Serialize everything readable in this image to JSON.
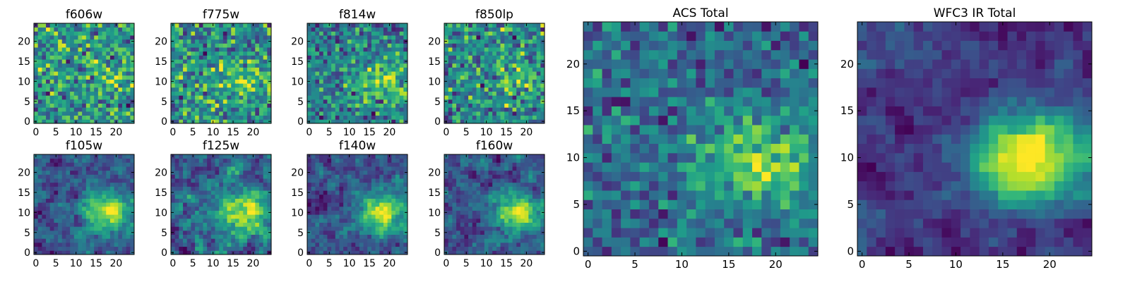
{
  "chart_data": [
    {
      "type": "heatmap",
      "title": "f606w",
      "seed": 11,
      "blob": 0.25,
      "noise": 1.0,
      "smooth": 0,
      "xlim": [
        0,
        25
      ],
      "ylim": [
        0,
        25
      ],
      "xticks": [
        "0",
        "5",
        "10",
        "15",
        "20"
      ],
      "yticks": [
        "0",
        "5",
        "10",
        "15",
        "20"
      ]
    },
    {
      "type": "heatmap",
      "title": "f775w",
      "seed": 23,
      "blob": 0.45,
      "noise": 1.0,
      "smooth": 0,
      "xlim": [
        0,
        25
      ],
      "ylim": [
        0,
        25
      ],
      "xticks": [
        "0",
        "5",
        "10",
        "15",
        "20"
      ],
      "yticks": [
        "0",
        "5",
        "10",
        "15",
        "20"
      ]
    },
    {
      "type": "heatmap",
      "title": "f814w",
      "seed": 37,
      "blob": 0.7,
      "noise": 0.9,
      "smooth": 0,
      "xlim": [
        0,
        25
      ],
      "ylim": [
        0,
        25
      ],
      "xticks": [
        "0",
        "5",
        "10",
        "15",
        "20"
      ],
      "yticks": [
        "0",
        "5",
        "10",
        "15",
        "20"
      ]
    },
    {
      "type": "heatmap",
      "title": "f850lp",
      "seed": 51,
      "blob": 0.3,
      "noise": 1.0,
      "smooth": 0,
      "xlim": [
        0,
        25
      ],
      "ylim": [
        0,
        25
      ],
      "xticks": [
        "0",
        "5",
        "10",
        "15",
        "20"
      ],
      "yticks": [
        "0",
        "5",
        "10",
        "15",
        "20"
      ]
    },
    {
      "type": "heatmap",
      "title": "f105w",
      "seed": 67,
      "blob": 0.9,
      "noise": 0.8,
      "smooth": 1,
      "xlim": [
        0,
        25
      ],
      "ylim": [
        0,
        25
      ],
      "xticks": [
        "0",
        "5",
        "10",
        "15",
        "20"
      ],
      "yticks": [
        "0",
        "5",
        "10",
        "15",
        "20"
      ]
    },
    {
      "type": "heatmap",
      "title": "f125w",
      "seed": 79,
      "blob": 0.8,
      "noise": 0.9,
      "smooth": 1,
      "xlim": [
        0,
        25
      ],
      "ylim": [
        0,
        25
      ],
      "xticks": [
        "0",
        "5",
        "10",
        "15",
        "20"
      ],
      "yticks": [
        "0",
        "5",
        "10",
        "15",
        "20"
      ]
    },
    {
      "type": "heatmap",
      "title": "f140w",
      "seed": 83,
      "blob": 1.0,
      "noise": 0.8,
      "smooth": 1,
      "xlim": [
        0,
        25
      ],
      "ylim": [
        0,
        25
      ],
      "xticks": [
        "0",
        "5",
        "10",
        "15",
        "20"
      ],
      "yticks": [
        "0",
        "5",
        "10",
        "15",
        "20"
      ]
    },
    {
      "type": "heatmap",
      "title": "f160w",
      "seed": 97,
      "blob": 0.9,
      "noise": 0.85,
      "smooth": 1,
      "xlim": [
        0,
        25
      ],
      "ylim": [
        0,
        25
      ],
      "xticks": [
        "0",
        "5",
        "10",
        "15",
        "20"
      ],
      "yticks": [
        "0",
        "5",
        "10",
        "15",
        "20"
      ]
    },
    {
      "type": "heatmap",
      "title": "ACS Total",
      "seed": 131,
      "blob": 0.9,
      "noise": 0.75,
      "smooth": 0,
      "xlim": [
        0,
        25
      ],
      "ylim": [
        0,
        25
      ],
      "xticks": [
        "0",
        "5",
        "10",
        "15",
        "20"
      ],
      "yticks": [
        "0",
        "5",
        "10",
        "15",
        "20"
      ]
    },
    {
      "type": "heatmap",
      "title": "WFC3 IR Total",
      "seed": 157,
      "blob": 1.3,
      "noise": 0.6,
      "smooth": 1,
      "xlim": [
        0,
        25
      ],
      "ylim": [
        0,
        25
      ],
      "xticks": [
        "0",
        "5",
        "10",
        "15",
        "20"
      ],
      "yticks": [
        "0",
        "5",
        "10",
        "15",
        "20"
      ]
    }
  ],
  "colormap": "viridis",
  "colors": {
    "axis": "#000000",
    "background": "#ffffff"
  }
}
